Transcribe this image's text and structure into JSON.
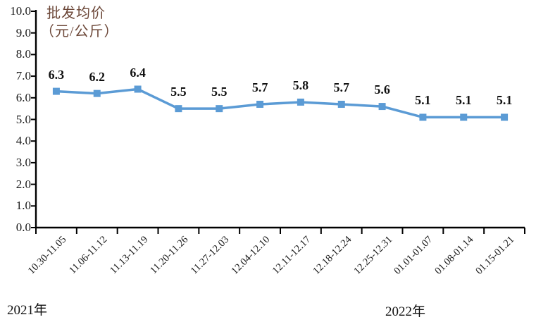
{
  "chart_data": {
    "type": "line",
    "title": "批发均价",
    "unit_label": "（元/公斤）",
    "categories": [
      "10.30-11.05",
      "11.06-11.12",
      "11.13-11.19",
      "11.20-11.26",
      "11.27-12.03",
      "12.04-12.10",
      "12.11-12.17",
      "12.18-12.24",
      "12.25-12.31",
      "01.01-01.07",
      "01.08-01.14",
      "01.15-01.21"
    ],
    "values": [
      6.3,
      6.2,
      6.4,
      5.5,
      5.5,
      5.7,
      5.8,
      5.7,
      5.6,
      5.1,
      5.1,
      5.1
    ],
    "data_labels": [
      "6.3",
      "6.2",
      "6.4",
      "5.5",
      "5.5",
      "5.7",
      "5.8",
      "5.7",
      "5.6",
      "5.1",
      "5.1",
      "5.1"
    ],
    "ylim": [
      0.0,
      10.0
    ],
    "ytick_step": 1.0,
    "ytick_labels": [
      "0.0",
      "1.0",
      "2.0",
      "3.0",
      "4.0",
      "5.0",
      "6.0",
      "7.0",
      "8.0",
      "9.0",
      "10.0"
    ],
    "year_labels": [
      "2021年",
      "2022年"
    ],
    "grid": false,
    "legend": "none",
    "marker": "square",
    "colors": {
      "line": "#5B9BD5",
      "marker": "#5B9BD5",
      "axis": "#000000",
      "tick_text": "#1a1a1a",
      "title_text": "#6b4637"
    }
  }
}
